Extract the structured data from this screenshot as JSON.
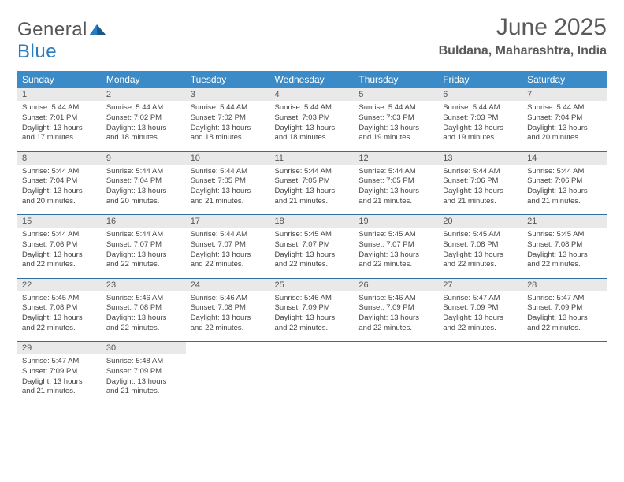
{
  "brand": {
    "part1": "General",
    "part2": "Blue"
  },
  "title": "June 2025",
  "location": "Buldana, Maharashtra, India",
  "colors": {
    "header_bg": "#3b8bc8",
    "header_text": "#ffffff",
    "daynum_bg": "#e9e9e9",
    "row_border": "#2f6fa3",
    "body_text": "#444444",
    "title_text": "#5a5a5a",
    "logo_gray": "#565656",
    "logo_blue": "#2b7bbf",
    "page_bg": "#ffffff"
  },
  "typography": {
    "title_fontsize": 30,
    "subtitle_fontsize": 16,
    "weekday_fontsize": 12,
    "daynum_fontsize": 11,
    "cell_fontsize": 9.5
  },
  "weekdays": [
    "Sunday",
    "Monday",
    "Tuesday",
    "Wednesday",
    "Thursday",
    "Friday",
    "Saturday"
  ],
  "weeks": [
    [
      {
        "n": "1",
        "sunrise": "5:44 AM",
        "sunset": "7:01 PM",
        "dl": "13 hours and 17 minutes."
      },
      {
        "n": "2",
        "sunrise": "5:44 AM",
        "sunset": "7:02 PM",
        "dl": "13 hours and 18 minutes."
      },
      {
        "n": "3",
        "sunrise": "5:44 AM",
        "sunset": "7:02 PM",
        "dl": "13 hours and 18 minutes."
      },
      {
        "n": "4",
        "sunrise": "5:44 AM",
        "sunset": "7:03 PM",
        "dl": "13 hours and 18 minutes."
      },
      {
        "n": "5",
        "sunrise": "5:44 AM",
        "sunset": "7:03 PM",
        "dl": "13 hours and 19 minutes."
      },
      {
        "n": "6",
        "sunrise": "5:44 AM",
        "sunset": "7:03 PM",
        "dl": "13 hours and 19 minutes."
      },
      {
        "n": "7",
        "sunrise": "5:44 AM",
        "sunset": "7:04 PM",
        "dl": "13 hours and 20 minutes."
      }
    ],
    [
      {
        "n": "8",
        "sunrise": "5:44 AM",
        "sunset": "7:04 PM",
        "dl": "13 hours and 20 minutes."
      },
      {
        "n": "9",
        "sunrise": "5:44 AM",
        "sunset": "7:04 PM",
        "dl": "13 hours and 20 minutes."
      },
      {
        "n": "10",
        "sunrise": "5:44 AM",
        "sunset": "7:05 PM",
        "dl": "13 hours and 21 minutes."
      },
      {
        "n": "11",
        "sunrise": "5:44 AM",
        "sunset": "7:05 PM",
        "dl": "13 hours and 21 minutes."
      },
      {
        "n": "12",
        "sunrise": "5:44 AM",
        "sunset": "7:05 PM",
        "dl": "13 hours and 21 minutes."
      },
      {
        "n": "13",
        "sunrise": "5:44 AM",
        "sunset": "7:06 PM",
        "dl": "13 hours and 21 minutes."
      },
      {
        "n": "14",
        "sunrise": "5:44 AM",
        "sunset": "7:06 PM",
        "dl": "13 hours and 21 minutes."
      }
    ],
    [
      {
        "n": "15",
        "sunrise": "5:44 AM",
        "sunset": "7:06 PM",
        "dl": "13 hours and 22 minutes."
      },
      {
        "n": "16",
        "sunrise": "5:44 AM",
        "sunset": "7:07 PM",
        "dl": "13 hours and 22 minutes."
      },
      {
        "n": "17",
        "sunrise": "5:44 AM",
        "sunset": "7:07 PM",
        "dl": "13 hours and 22 minutes."
      },
      {
        "n": "18",
        "sunrise": "5:45 AM",
        "sunset": "7:07 PM",
        "dl": "13 hours and 22 minutes."
      },
      {
        "n": "19",
        "sunrise": "5:45 AM",
        "sunset": "7:07 PM",
        "dl": "13 hours and 22 minutes."
      },
      {
        "n": "20",
        "sunrise": "5:45 AM",
        "sunset": "7:08 PM",
        "dl": "13 hours and 22 minutes."
      },
      {
        "n": "21",
        "sunrise": "5:45 AM",
        "sunset": "7:08 PM",
        "dl": "13 hours and 22 minutes."
      }
    ],
    [
      {
        "n": "22",
        "sunrise": "5:45 AM",
        "sunset": "7:08 PM",
        "dl": "13 hours and 22 minutes."
      },
      {
        "n": "23",
        "sunrise": "5:46 AM",
        "sunset": "7:08 PM",
        "dl": "13 hours and 22 minutes."
      },
      {
        "n": "24",
        "sunrise": "5:46 AM",
        "sunset": "7:08 PM",
        "dl": "13 hours and 22 minutes."
      },
      {
        "n": "25",
        "sunrise": "5:46 AM",
        "sunset": "7:09 PM",
        "dl": "13 hours and 22 minutes."
      },
      {
        "n": "26",
        "sunrise": "5:46 AM",
        "sunset": "7:09 PM",
        "dl": "13 hours and 22 minutes."
      },
      {
        "n": "27",
        "sunrise": "5:47 AM",
        "sunset": "7:09 PM",
        "dl": "13 hours and 22 minutes."
      },
      {
        "n": "28",
        "sunrise": "5:47 AM",
        "sunset": "7:09 PM",
        "dl": "13 hours and 22 minutes."
      }
    ],
    [
      {
        "n": "29",
        "sunrise": "5:47 AM",
        "sunset": "7:09 PM",
        "dl": "13 hours and 21 minutes."
      },
      {
        "n": "30",
        "sunrise": "5:48 AM",
        "sunset": "7:09 PM",
        "dl": "13 hours and 21 minutes."
      },
      null,
      null,
      null,
      null,
      null
    ]
  ],
  "labels": {
    "sunrise": "Sunrise:",
    "sunset": "Sunset:",
    "daylight": "Daylight:"
  }
}
